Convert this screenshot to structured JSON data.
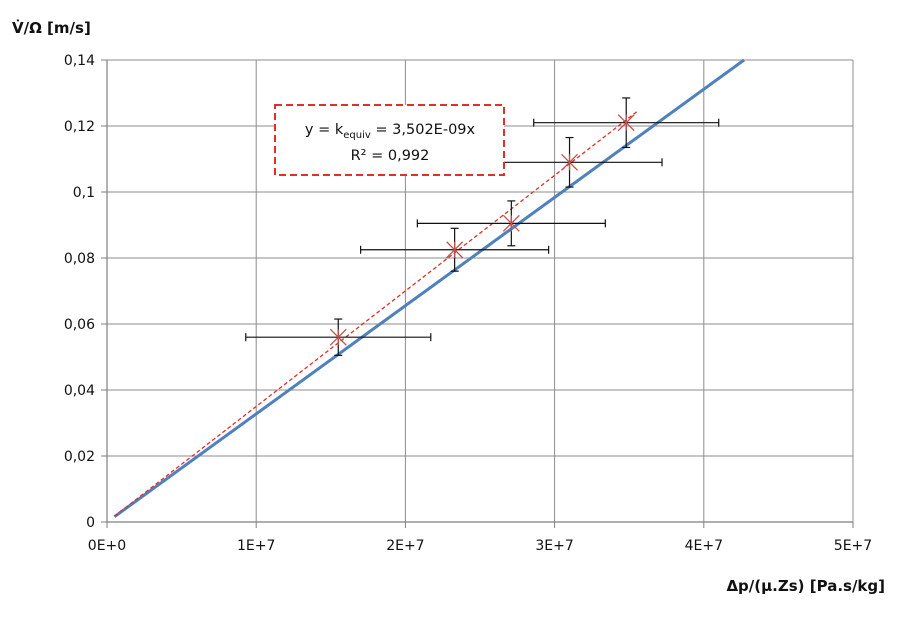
{
  "chart_data": {
    "type": "scatter",
    "ylabel": "V̇/Ω [m/s]",
    "xlabel": "Δp/(μ.Zs) [Pa.s/kg]",
    "xlim": [
      0,
      50000000
    ],
    "ylim": [
      0,
      0.14
    ],
    "grid": true,
    "x_ticks": [
      0,
      10000000,
      20000000,
      30000000,
      40000000,
      50000000
    ],
    "x_tick_labels": [
      "0E+0",
      "1E+7",
      "2E+7",
      "3E+7",
      "4E+7",
      "5E+7"
    ],
    "y_ticks": [
      0,
      0.02,
      0.04,
      0.06,
      0.08,
      0.1,
      0.12,
      0.14
    ],
    "y_tick_labels": [
      "0",
      "0,02",
      "0,04",
      "0,06",
      "0,08",
      "0,1",
      "0,12",
      "0,14"
    ],
    "series": [
      {
        "type": "scatter",
        "marker": "star",
        "color": "#c0504d",
        "points": [
          {
            "x": 15500000,
            "y": 0.056,
            "x_err": 6200000,
            "y_err": 0.0055
          },
          {
            "x": 23300000,
            "y": 0.0825,
            "x_err": 6300000,
            "y_err": 0.0065
          },
          {
            "x": 27100000,
            "y": 0.0905,
            "x_err": 6300000,
            "y_err": 0.0068
          },
          {
            "x": 31000000,
            "y": 0.109,
            "x_err": 6200000,
            "y_err": 0.0075
          },
          {
            "x": 34800000,
            "y": 0.121,
            "x_err": 6200000,
            "y_err": 0.0075
          }
        ]
      },
      {
        "type": "line",
        "style": "dashed",
        "color": "#e0302a",
        "x": [
          500000,
          35500000
        ],
        "y": [
          0.00175,
          0.1243
        ]
      },
      {
        "type": "line",
        "style": "solid",
        "color": "#4f81bd",
        "x": [
          500000,
          42700000
        ],
        "y": [
          0.0016,
          0.14
        ]
      }
    ],
    "annotation": {
      "line1_prefix": "y = k",
      "line1_sub": "equiv",
      "line1_suffix": " = 3,502E-09x",
      "line2": "R² = 0,992",
      "border_color": "#e0302a"
    }
  }
}
